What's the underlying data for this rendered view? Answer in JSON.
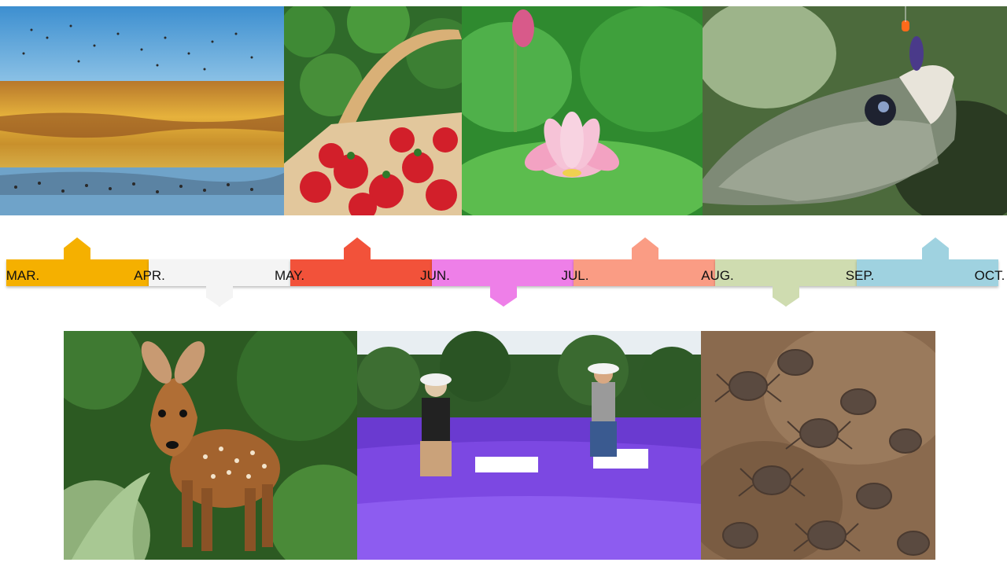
{
  "months": [
    "MAR.",
    "APR.",
    "MAY.",
    "JUN.",
    "JUL.",
    "AUG.",
    "SEP.",
    "OCT."
  ],
  "segments": [
    {
      "from": "MAR.",
      "to": "APR.",
      "color": "#f5b000",
      "marker": "up"
    },
    {
      "from": "APR.",
      "to": "MAY.",
      "color": "#f4f4f4",
      "marker": "down"
    },
    {
      "from": "MAY.",
      "to": "JUN.",
      "color": "#f2523a",
      "marker": "up"
    },
    {
      "from": "JUN.",
      "to": "JUL.",
      "color": "#ee7fe8",
      "marker": "down"
    },
    {
      "from": "JUL.",
      "to": "AUG.",
      "color": "#fa9c84",
      "marker": "up"
    },
    {
      "from": "AUG.",
      "to": "SEP.",
      "color": "#cfdcb0",
      "marker": "down"
    },
    {
      "from": "SEP.",
      "to": "OCT.",
      "color": "#9fd2e0",
      "marker": "up"
    }
  ],
  "photos_top": [
    {
      "subject": "wetland-birds"
    },
    {
      "subject": "strawberry-basket"
    },
    {
      "subject": "lotus-flower"
    },
    {
      "subject": "bass-fish"
    }
  ],
  "photos_bottom": [
    {
      "subject": "fawn-deer"
    },
    {
      "subject": "lavender-harvest"
    },
    {
      "subject": "crabs"
    }
  ]
}
